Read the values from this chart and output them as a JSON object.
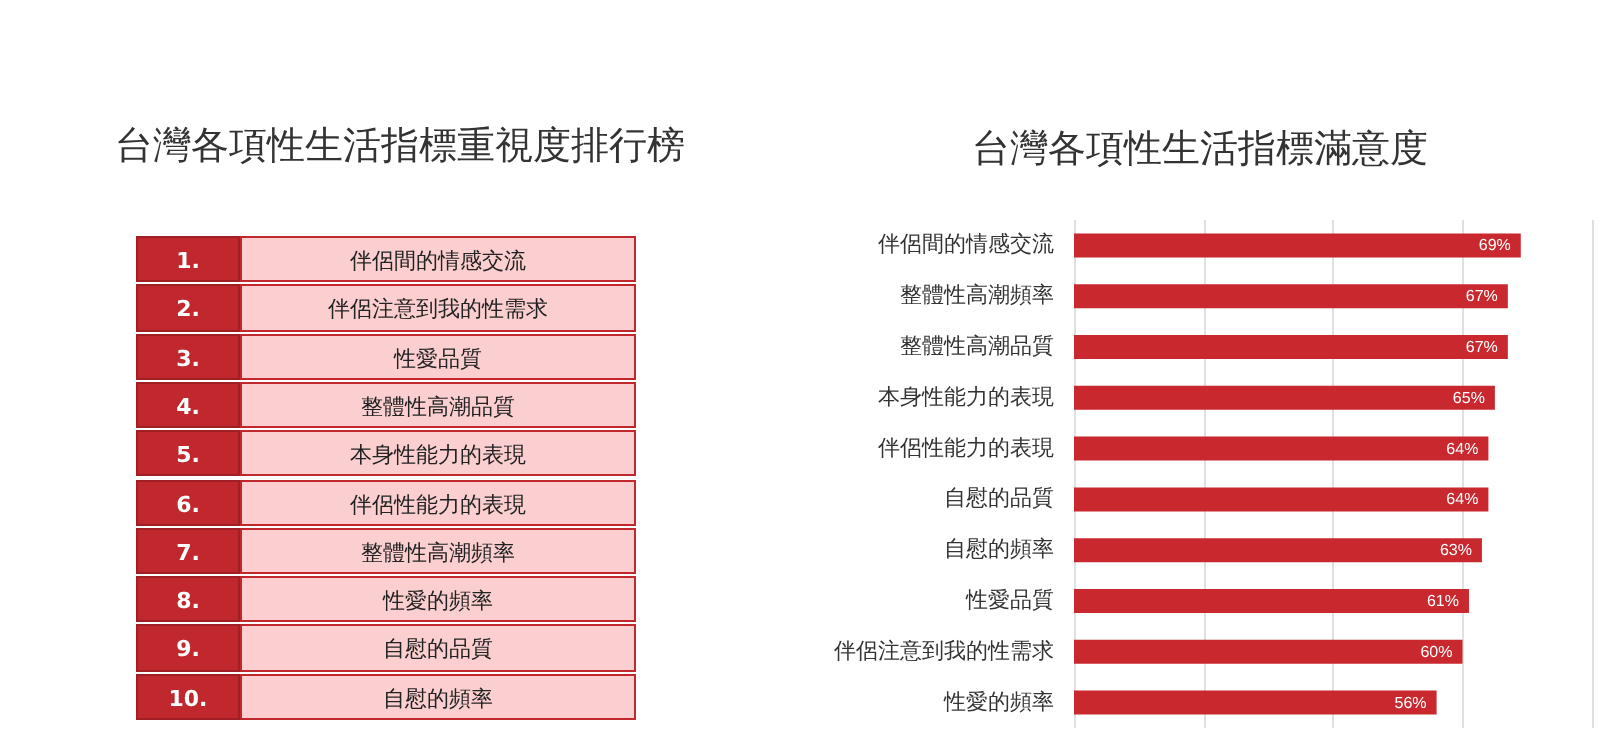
{
  "chart_data": [
    {
      "type": "other",
      "title": "台灣各項性生活指標重視度排行榜",
      "categories": [
        "伴侶間的情感交流",
        "伴侶注意到我的性需求",
        "性愛品質",
        "整體性高潮品質",
        "本身性能力的表現",
        "伴侶性能力的表現",
        "整體性高潮頻率",
        "性愛的頻率",
        "自慰的品質",
        "自慰的頻率"
      ],
      "values": [
        1,
        2,
        3,
        4,
        5,
        6,
        7,
        8,
        9,
        10
      ],
      "value_labels": [
        "1.",
        "2.",
        "3.",
        "4.",
        "5.",
        "6.",
        "7.",
        "8.",
        "9.",
        "10."
      ],
      "colors": [
        "#c0282d",
        "#c0282d",
        "#c0282d",
        "#c0282d",
        "#c0282d",
        "#c0282d",
        "#c0282d",
        "#c0282d",
        "#c0282d",
        "#c0282d"
      ]
    },
    {
      "type": "bar",
      "orientation": "horizontal",
      "title": "台灣各項性生活指標滿意度",
      "categories": [
        "伴侶間的情感交流",
        "整體性高潮頻率",
        "整體性高潮品質",
        "本身性能力的表現",
        "伴侶性能力的表現",
        "自慰的品質",
        "自慰的頻率",
        "性愛品質",
        "伴侶注意到我的性需求",
        "性愛的頻率"
      ],
      "values": [
        69,
        67,
        67,
        65,
        64,
        64,
        63,
        61,
        60,
        56
      ],
      "value_labels": [
        "69%",
        "67%",
        "67%",
        "65%",
        "64%",
        "64%",
        "63%",
        "61%",
        "60%",
        "56%"
      ],
      "color": "#c8282e",
      "xlim": [
        0,
        80
      ],
      "xticks": [
        {
          "value": 0,
          "label": null
        },
        {
          "value": 20,
          "label": null
        },
        {
          "value": 40,
          "label": null
        },
        {
          "value": 60,
          "label": null
        },
        {
          "value": 80,
          "label": null
        }
      ],
      "grid": "x"
    }
  ]
}
